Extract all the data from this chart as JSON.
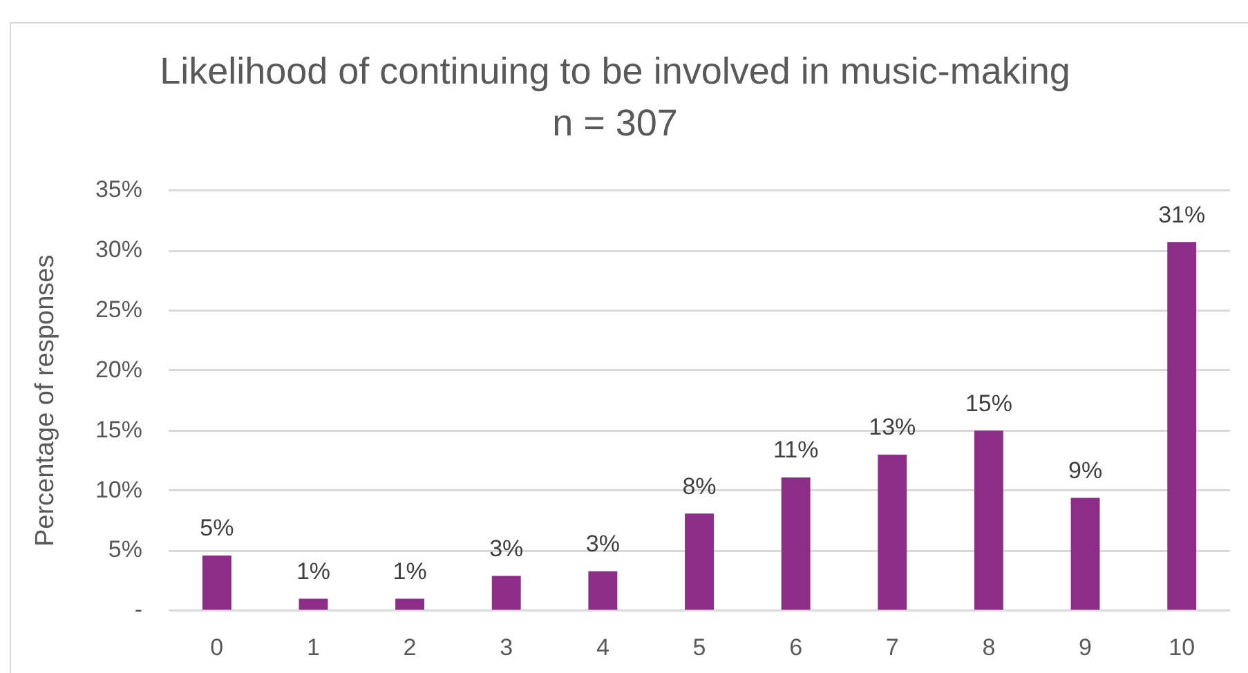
{
  "chart_data": {
    "type": "bar",
    "title": "Likelihood of continuing to be involved in music-making",
    "subtitle": "n = 307",
    "ylabel": "Percentage of responses",
    "categories": [
      "0",
      "1",
      "2",
      "3",
      "4",
      "5",
      "6",
      "7",
      "8",
      "9",
      "10"
    ],
    "values": [
      4.6,
      1.0,
      1.0,
      2.9,
      3.3,
      8.1,
      11.1,
      13.0,
      15.0,
      9.4,
      30.7
    ],
    "color": "#8c2d87",
    "value_labels": [
      "5%",
      "1%",
      "1%",
      "3%",
      "3%",
      "8%",
      "11%",
      "13%",
      "15%",
      "9%",
      "31%"
    ],
    "ylim": [
      0,
      35
    ],
    "yticks": [
      {
        "value": 0,
        "label": "-"
      },
      {
        "value": 5,
        "label": "5%"
      },
      {
        "value": 10,
        "label": "10%"
      },
      {
        "value": 15,
        "label": "15%"
      },
      {
        "value": 20,
        "label": "20%"
      },
      {
        "value": 25,
        "label": "25%"
      },
      {
        "value": 30,
        "label": "30%"
      },
      {
        "value": 35,
        "label": "35%"
      }
    ],
    "grid": "y"
  }
}
